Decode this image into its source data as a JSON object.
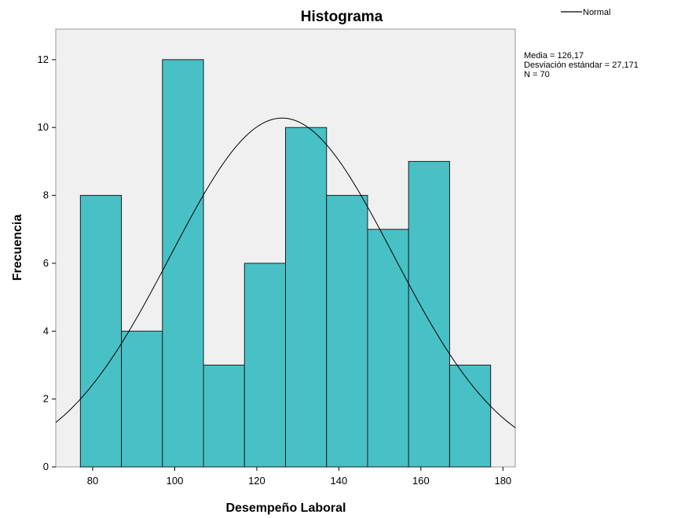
{
  "chart_data": {
    "type": "bar",
    "title": "Histograma",
    "xlabel": "Desempeño Laboral",
    "ylabel": "Frecuencia",
    "bins": [
      {
        "start": 77,
        "end": 87,
        "count": 8
      },
      {
        "start": 87,
        "end": 97,
        "count": 4
      },
      {
        "start": 97,
        "end": 107,
        "count": 12
      },
      {
        "start": 107,
        "end": 117,
        "count": 3
      },
      {
        "start": 117,
        "end": 127,
        "count": 6
      },
      {
        "start": 127,
        "end": 137,
        "count": 10
      },
      {
        "start": 137,
        "end": 147,
        "count": 8
      },
      {
        "start": 147,
        "end": 157,
        "count": 7
      },
      {
        "start": 157,
        "end": 167,
        "count": 9
      },
      {
        "start": 167,
        "end": 177,
        "count": 3
      }
    ],
    "xlim": [
      71,
      183
    ],
    "ylim": [
      0,
      12.9
    ],
    "x_ticks": [
      "80",
      "100",
      "120",
      "140",
      "160",
      "180"
    ],
    "y_ticks": [
      "0",
      "2",
      "4",
      "6",
      "8",
      "10",
      "12"
    ],
    "normal_curve": {
      "mean": 126.17,
      "sd": 27.171,
      "n": 70,
      "bin_width": 10
    },
    "legend": {
      "position": "top-right",
      "entries": [
        "Normal"
      ]
    },
    "stats": [
      "Media = 126,17",
      "Desviación estándar = 27,171",
      "N = 70"
    ],
    "grid": false,
    "colors": {
      "bar_fill": "#47c1c6",
      "bar_stroke": "#1f1f1f",
      "plot_bg": "#f0f0f0",
      "curve": "#000000"
    }
  }
}
